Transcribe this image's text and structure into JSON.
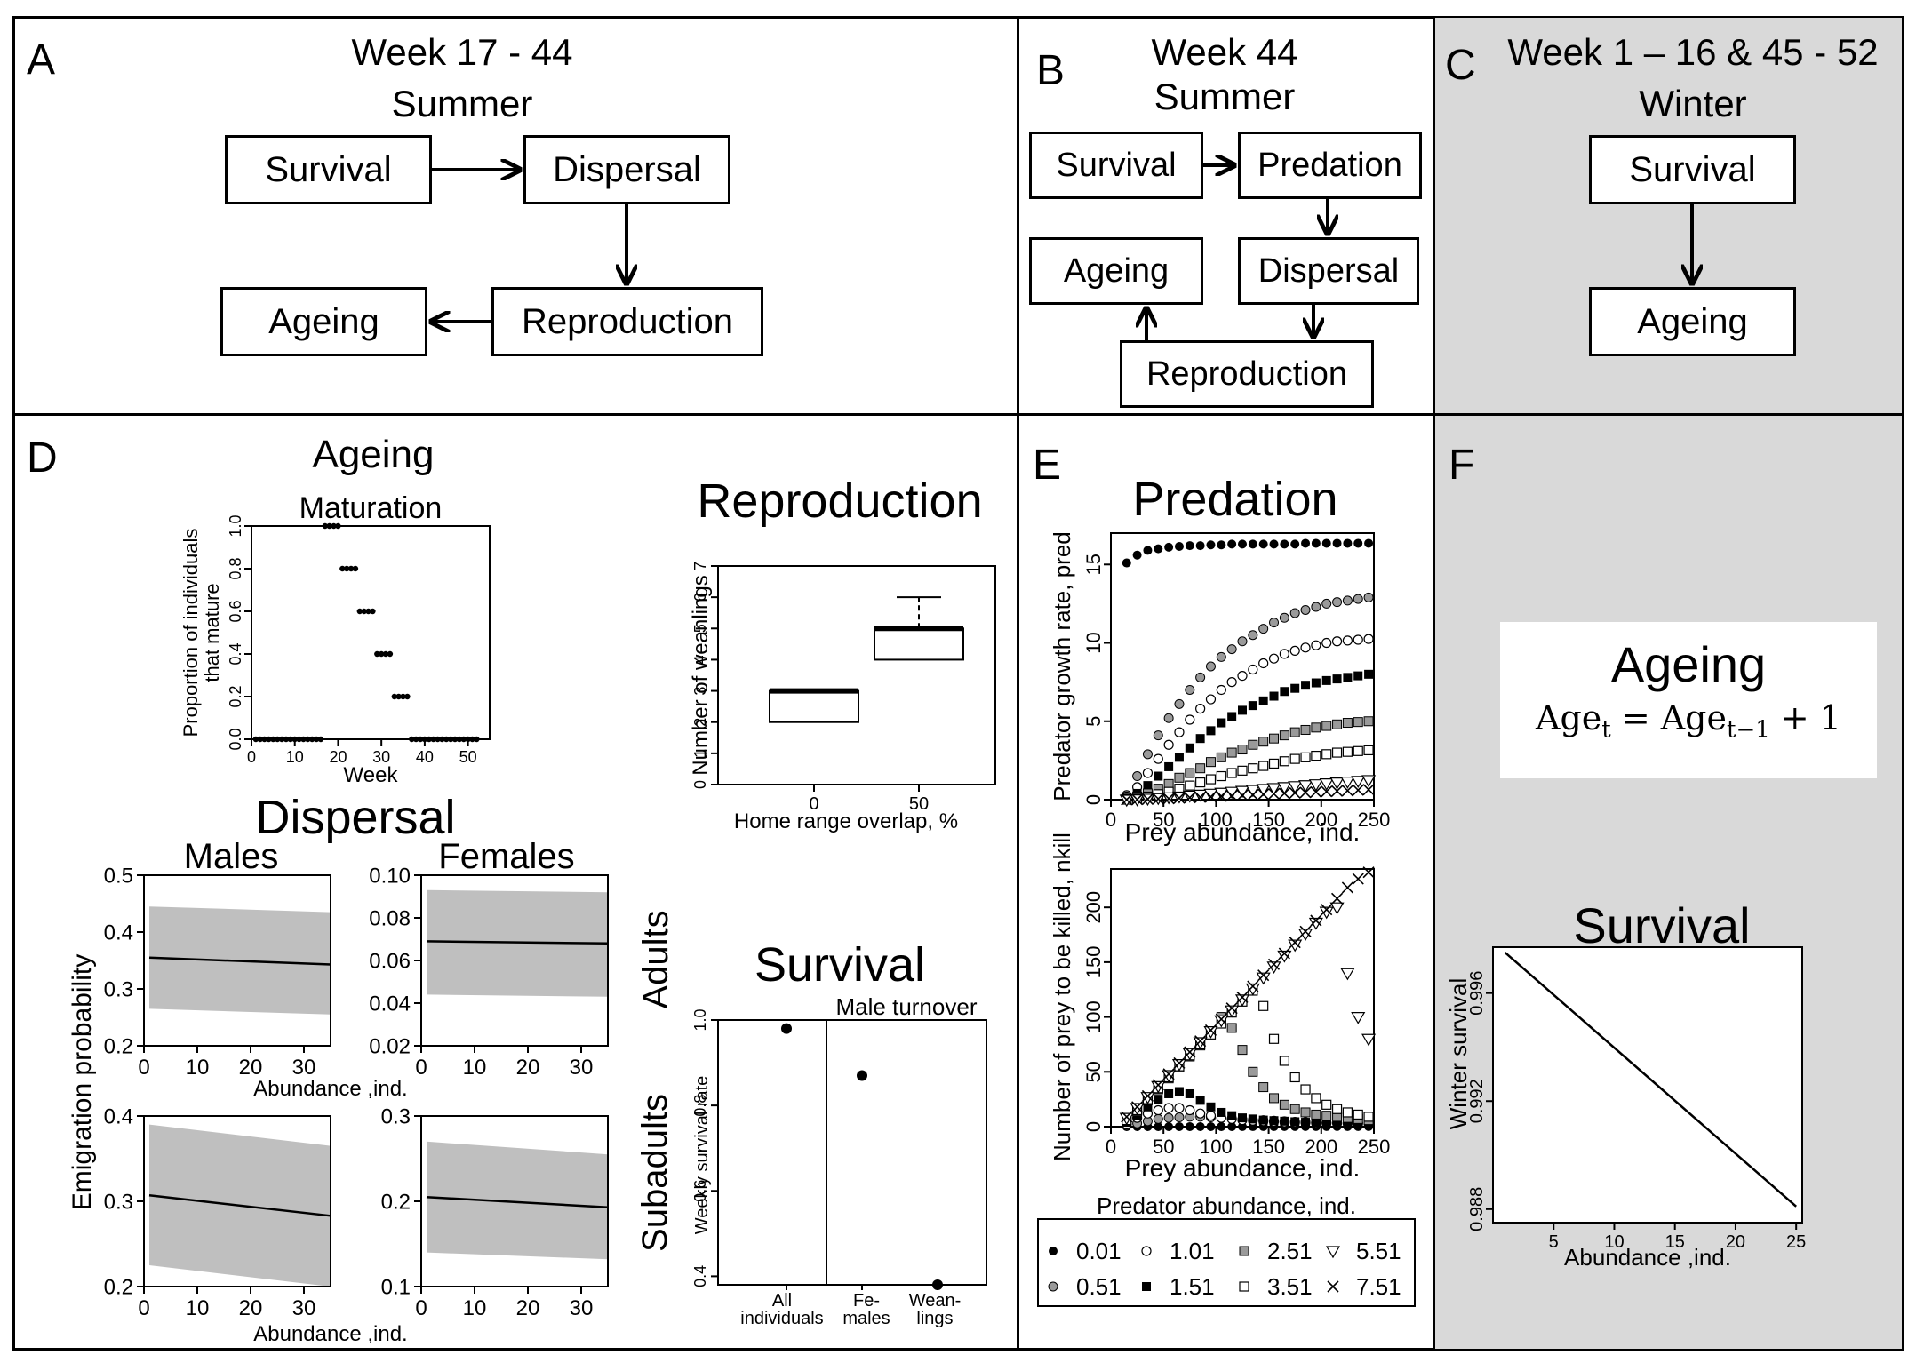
{
  "panel_a": {
    "label": "A",
    "week": "Week 17 - 44",
    "season": "Summer",
    "boxes": {
      "survival": "Survival",
      "dispersal": "Dispersal",
      "reproduction": "Reproduction",
      "ageing": "Ageing"
    }
  },
  "panel_b": {
    "label": "B",
    "week": "Week 44",
    "season": "Summer",
    "boxes": {
      "survival": "Survival",
      "predation": "Predation",
      "dispersal": "Dispersal",
      "reproduction": "Reproduction",
      "ageing": "Ageing"
    }
  },
  "panel_c": {
    "label": "C",
    "week": "Week 1 – 16 & 45 - 52",
    "season": "Winter",
    "boxes": {
      "survival": "Survival",
      "ageing": "Ageing"
    }
  },
  "panel_d": {
    "label": "D",
    "ageing_title": "Ageing",
    "dispersal_title": "Dispersal",
    "reproduction_title": "Reproduction",
    "survival_title": "Survival",
    "males": "Males",
    "females": "Females",
    "adults": "Adults",
    "subadults": "Subadults",
    "emigration_ylabel": "Emigration probability",
    "abundance_xlabel": "Abundance ,ind."
  },
  "panel_e": {
    "label": "E",
    "predation_title": "Predation"
  },
  "panel_f": {
    "label": "F",
    "ageing_title": "Ageing",
    "ageing_formula": {
      "lhs": "Age",
      "lhs_sub": "t",
      "eq": " = ",
      "rhs": "Age",
      "rhs_sub": "t−1",
      "tail": " + 1"
    },
    "survival_title": "Survival"
  },
  "chart_data": [
    {
      "id": "maturation",
      "type": "scatter",
      "title": "Maturation",
      "xlabel": "Week",
      "ylabel": "Proportion of individuals that mature",
      "xlim": [
        0,
        55
      ],
      "ylim": [
        0,
        1
      ],
      "xticks": [
        0,
        10,
        20,
        30,
        40,
        50
      ],
      "yticks": [
        0.0,
        0.2,
        0.4,
        0.6,
        0.8,
        1.0
      ],
      "x": [
        1,
        2,
        3,
        4,
        5,
        6,
        7,
        8,
        9,
        10,
        11,
        12,
        13,
        14,
        15,
        16,
        17,
        18,
        19,
        20,
        21,
        22,
        23,
        24,
        25,
        26,
        27,
        28,
        29,
        30,
        31,
        32,
        33,
        34,
        35,
        36,
        37,
        38,
        39,
        40,
        41,
        42,
        43,
        44,
        45,
        46,
        47,
        48,
        49,
        50,
        51,
        52
      ],
      "y": [
        0,
        0,
        0,
        0,
        0,
        0,
        0,
        0,
        0,
        0,
        0,
        0,
        0,
        0,
        0,
        0,
        1,
        1,
        1,
        1,
        0.8,
        0.8,
        0.8,
        0.8,
        0.6,
        0.6,
        0.6,
        0.6,
        0.4,
        0.4,
        0.4,
        0.4,
        0.2,
        0.2,
        0.2,
        0.2,
        0,
        0,
        0,
        0,
        0,
        0,
        0,
        0,
        0,
        0,
        0,
        0,
        0,
        0,
        0,
        0
      ]
    },
    {
      "id": "reproduction",
      "type": "box",
      "title": "",
      "xlabel": "Home range overlap, %",
      "ylabel": "Number of weanlings",
      "ylim": [
        0,
        7
      ],
      "yticks": [
        0,
        1,
        2,
        3,
        4,
        5,
        6,
        7
      ],
      "categories": [
        "0",
        "50"
      ],
      "boxes": [
        {
          "category": "0",
          "min": 2,
          "q1": 2,
          "median": 3,
          "q3": 3,
          "max": 3
        },
        {
          "category": "50",
          "min": 4,
          "q1": 4,
          "median": 5,
          "q3": 5,
          "max": 6
        }
      ]
    },
    {
      "id": "survival_weekly",
      "type": "scatter",
      "title": "",
      "annotation": "Male turnover",
      "ylabel": "Weekly survival rate",
      "ylim": [
        0.38,
        1.0
      ],
      "yticks": [
        0.4,
        0.6,
        0.8,
        1.0
      ],
      "categories": [
        "All individuals",
        "Fe- males",
        "Wean- lings"
      ],
      "values": [
        0.98,
        0.87,
        0.38
      ]
    },
    {
      "id": "dispersal_adult_males",
      "type": "area",
      "title": "",
      "xlim": [
        0,
        35
      ],
      "ylim": [
        0.2,
        0.5
      ],
      "xticks": [
        0,
        10,
        20,
        30
      ],
      "yticks": [
        0.2,
        0.3,
        0.4,
        0.5
      ],
      "x": [
        1,
        35
      ],
      "mean": [
        0.355,
        0.343
      ],
      "lower": [
        0.265,
        0.255
      ],
      "upper": [
        0.445,
        0.435
      ]
    },
    {
      "id": "dispersal_adult_females",
      "type": "area",
      "title": "",
      "xlim": [
        0,
        35
      ],
      "ylim": [
        0.02,
        0.1
      ],
      "xticks": [
        0,
        10,
        20,
        30
      ],
      "yticks": [
        0.02,
        0.04,
        0.06,
        0.08,
        0.1
      ],
      "x": [
        1,
        35
      ],
      "mean": [
        0.069,
        0.068
      ],
      "lower": [
        0.044,
        0.043
      ],
      "upper": [
        0.093,
        0.092
      ]
    },
    {
      "id": "dispersal_subadult_males",
      "type": "area",
      "title": "",
      "xlim": [
        0,
        35
      ],
      "ylim": [
        0.2,
        0.4
      ],
      "xticks": [
        0,
        10,
        20,
        30
      ],
      "yticks": [
        0.2,
        0.3,
        0.4
      ],
      "x": [
        1,
        35
      ],
      "mean": [
        0.307,
        0.283
      ],
      "lower": [
        0.225,
        0.2
      ],
      "upper": [
        0.39,
        0.365
      ]
    },
    {
      "id": "dispersal_subadult_females",
      "type": "area",
      "title": "",
      "xlim": [
        0,
        35
      ],
      "ylim": [
        0.1,
        0.3
      ],
      "xticks": [
        0,
        10,
        20,
        30
      ],
      "yticks": [
        0.1,
        0.2,
        0.3
      ],
      "x": [
        1,
        35
      ],
      "mean": [
        0.205,
        0.193
      ],
      "lower": [
        0.14,
        0.132
      ],
      "upper": [
        0.27,
        0.255
      ]
    },
    {
      "id": "predator_growth",
      "type": "scatter",
      "title": "",
      "xlabel": "Prey abundance, ind.",
      "ylabel": "Predator growth rate, pred",
      "xlim": [
        0,
        250
      ],
      "ylim": [
        0,
        17
      ],
      "xticks": [
        0,
        50,
        100,
        150,
        200,
        250
      ],
      "yticks": [
        0,
        5,
        10,
        15
      ],
      "x": [
        15,
        25,
        35,
        45,
        55,
        65,
        75,
        85,
        95,
        105,
        115,
        125,
        135,
        145,
        155,
        165,
        175,
        185,
        195,
        205,
        215,
        225,
        235,
        245
      ],
      "series": [
        {
          "name": "0.01",
          "marker": "dot-black",
          "values": [
            15.1,
            15.6,
            15.9,
            16.0,
            16.1,
            16.15,
            16.2,
            16.2,
            16.25,
            16.25,
            16.3,
            16.3,
            16.3,
            16.3,
            16.3,
            16.3,
            16.3,
            16.35,
            16.35,
            16.35,
            16.35,
            16.35,
            16.35,
            16.35
          ]
        },
        {
          "name": "0.51",
          "marker": "dot-grey",
          "values": [
            0.3,
            1.5,
            2.9,
            4.1,
            5.2,
            6.1,
            7.0,
            7.8,
            8.5,
            9.1,
            9.6,
            10.1,
            10.5,
            10.9,
            11.3,
            11.6,
            11.9,
            12.1,
            12.3,
            12.5,
            12.6,
            12.7,
            12.8,
            12.9
          ]
        },
        {
          "name": "1.01",
          "marker": "circle-open",
          "values": [
            0.2,
            0.8,
            1.7,
            2.6,
            3.5,
            4.3,
            5.1,
            5.8,
            6.4,
            7.0,
            7.5,
            7.9,
            8.3,
            8.7,
            9.0,
            9.3,
            9.5,
            9.7,
            9.85,
            10.0,
            10.1,
            10.15,
            10.2,
            10.25
          ]
        },
        {
          "name": "1.51",
          "marker": "square-black",
          "values": [
            0.1,
            0.4,
            0.9,
            1.5,
            2.1,
            2.7,
            3.3,
            3.9,
            4.4,
            4.9,
            5.3,
            5.7,
            6.0,
            6.3,
            6.6,
            6.9,
            7.1,
            7.3,
            7.45,
            7.6,
            7.7,
            7.8,
            7.9,
            8.0
          ]
        },
        {
          "name": "2.51",
          "marker": "square-grey",
          "values": [
            0.05,
            0.2,
            0.4,
            0.7,
            1.0,
            1.4,
            1.7,
            2.0,
            2.4,
            2.7,
            3.0,
            3.2,
            3.5,
            3.7,
            3.9,
            4.1,
            4.3,
            4.45,
            4.6,
            4.7,
            4.8,
            4.9,
            4.95,
            5.0
          ]
        },
        {
          "name": "3.51",
          "marker": "square-open",
          "values": [
            0.0,
            0.1,
            0.2,
            0.35,
            0.5,
            0.7,
            0.9,
            1.1,
            1.3,
            1.5,
            1.7,
            1.85,
            2.0,
            2.15,
            2.3,
            2.45,
            2.6,
            2.7,
            2.8,
            2.9,
            3.0,
            3.05,
            3.1,
            3.15
          ]
        },
        {
          "name": "5.51",
          "marker": "triangle-down-open",
          "values": [
            0.0,
            0.02,
            0.06,
            0.1,
            0.15,
            0.2,
            0.26,
            0.32,
            0.38,
            0.44,
            0.5,
            0.56,
            0.62,
            0.68,
            0.74,
            0.8,
            0.86,
            0.92,
            0.98,
            1.04,
            1.1,
            1.15,
            1.2,
            1.25
          ]
        },
        {
          "name": "7.51",
          "marker": "cross",
          "values": [
            0.0,
            0.01,
            0.03,
            0.05,
            0.07,
            0.1,
            0.13,
            0.16,
            0.19,
            0.22,
            0.25,
            0.28,
            0.31,
            0.34,
            0.37,
            0.4,
            0.43,
            0.46,
            0.49,
            0.52,
            0.55,
            0.58,
            0.61,
            0.64
          ]
        }
      ]
    },
    {
      "id": "prey_killed",
      "type": "scatter",
      "title": "",
      "xlabel": "Prey abundance, ind.",
      "ylabel": "Number of prey to be killed, nkill",
      "legend_title": "Predator abundance, ind.",
      "xlim": [
        0,
        250
      ],
      "ylim": [
        0,
        235
      ],
      "xticks": [
        0,
        50,
        100,
        150,
        200,
        250
      ],
      "yticks": [
        0,
        50,
        100,
        150,
        200
      ],
      "x": [
        15,
        25,
        35,
        45,
        55,
        65,
        75,
        85,
        95,
        105,
        115,
        125,
        135,
        145,
        155,
        165,
        175,
        185,
        195,
        205,
        215,
        225,
        235,
        245
      ],
      "series": [
        {
          "name": "0.01",
          "marker": "dot-black",
          "values": [
            0.0,
            0.01,
            0.01,
            0.02,
            0.02,
            0.03,
            0.03,
            0.04,
            0.04,
            0.05,
            0.05,
            0.06,
            0.06,
            0.07,
            0.07,
            0.08,
            0.08,
            0.09,
            0.09,
            0.1,
            0.1,
            0.11,
            0.11,
            0.12
          ]
        },
        {
          "name": "0.51",
          "marker": "dot-grey",
          "values": [
            1,
            3,
            5,
            7,
            8,
            8.5,
            9,
            9,
            8.5,
            8,
            7.5,
            7,
            6.5,
            6,
            5.5,
            5,
            4.5,
            4.2,
            4,
            3.8,
            3.6,
            3.4,
            3.2,
            3
          ]
        },
        {
          "name": "1.01",
          "marker": "circle-open",
          "values": [
            2,
            8,
            12,
            15,
            17,
            17,
            15,
            12,
            10,
            8,
            7,
            6,
            5.5,
            5,
            4.5,
            4,
            3.8,
            3.6,
            3.4,
            3.2,
            3.0,
            2.8,
            2.6,
            2.5
          ]
        },
        {
          "name": "1.51",
          "marker": "square-black",
          "values": [
            4,
            10,
            18,
            25,
            30,
            32,
            30,
            24,
            18,
            13,
            10,
            8,
            7,
            6,
            5.5,
            5,
            4.5,
            4,
            3.8,
            3.6,
            3.4,
            3.2,
            3,
            2.8
          ]
        },
        {
          "name": "2.51",
          "marker": "square-grey",
          "values": [
            6,
            14,
            24,
            34,
            44,
            54,
            64,
            74,
            86,
            100,
            90,
            70,
            50,
            36,
            26,
            20,
            16,
            13,
            11,
            10,
            9,
            8,
            7,
            6
          ]
        },
        {
          "name": "3.51",
          "marker": "square-open",
          "values": [
            6,
            15,
            25,
            35,
            45,
            55,
            65,
            75,
            84,
            94,
            104,
            114,
            124,
            110,
            80,
            60,
            45,
            34,
            26,
            20,
            16,
            13,
            11,
            9
          ]
        },
        {
          "name": "5.51",
          "marker": "triangle-down-open",
          "values": [
            8,
            17,
            27,
            37,
            47,
            57,
            67,
            77,
            87,
            97,
            106,
            116,
            126,
            136,
            146,
            156,
            166,
            176,
            186,
            196,
            200,
            140,
            100,
            80
          ]
        },
        {
          "name": "7.51",
          "marker": "cross",
          "values": [
            9,
            18,
            28,
            38,
            48,
            58,
            68,
            78,
            88,
            98,
            108,
            118,
            128,
            138,
            148,
            158,
            168,
            178,
            188,
            198,
            208,
            218,
            226,
            232
          ]
        }
      ]
    },
    {
      "id": "winter_survival",
      "type": "line",
      "title": "",
      "xlabel": "Abundance ,ind.",
      "ylabel": "Winter survival",
      "xlim": [
        0,
        25.5
      ],
      "ylim": [
        0.9875,
        0.9977
      ],
      "xticks": [
        5,
        10,
        15,
        20,
        25
      ],
      "yticks": [
        0.988,
        0.992,
        0.996
      ],
      "x": [
        1,
        25
      ],
      "y": [
        0.9975,
        0.9881
      ]
    }
  ]
}
